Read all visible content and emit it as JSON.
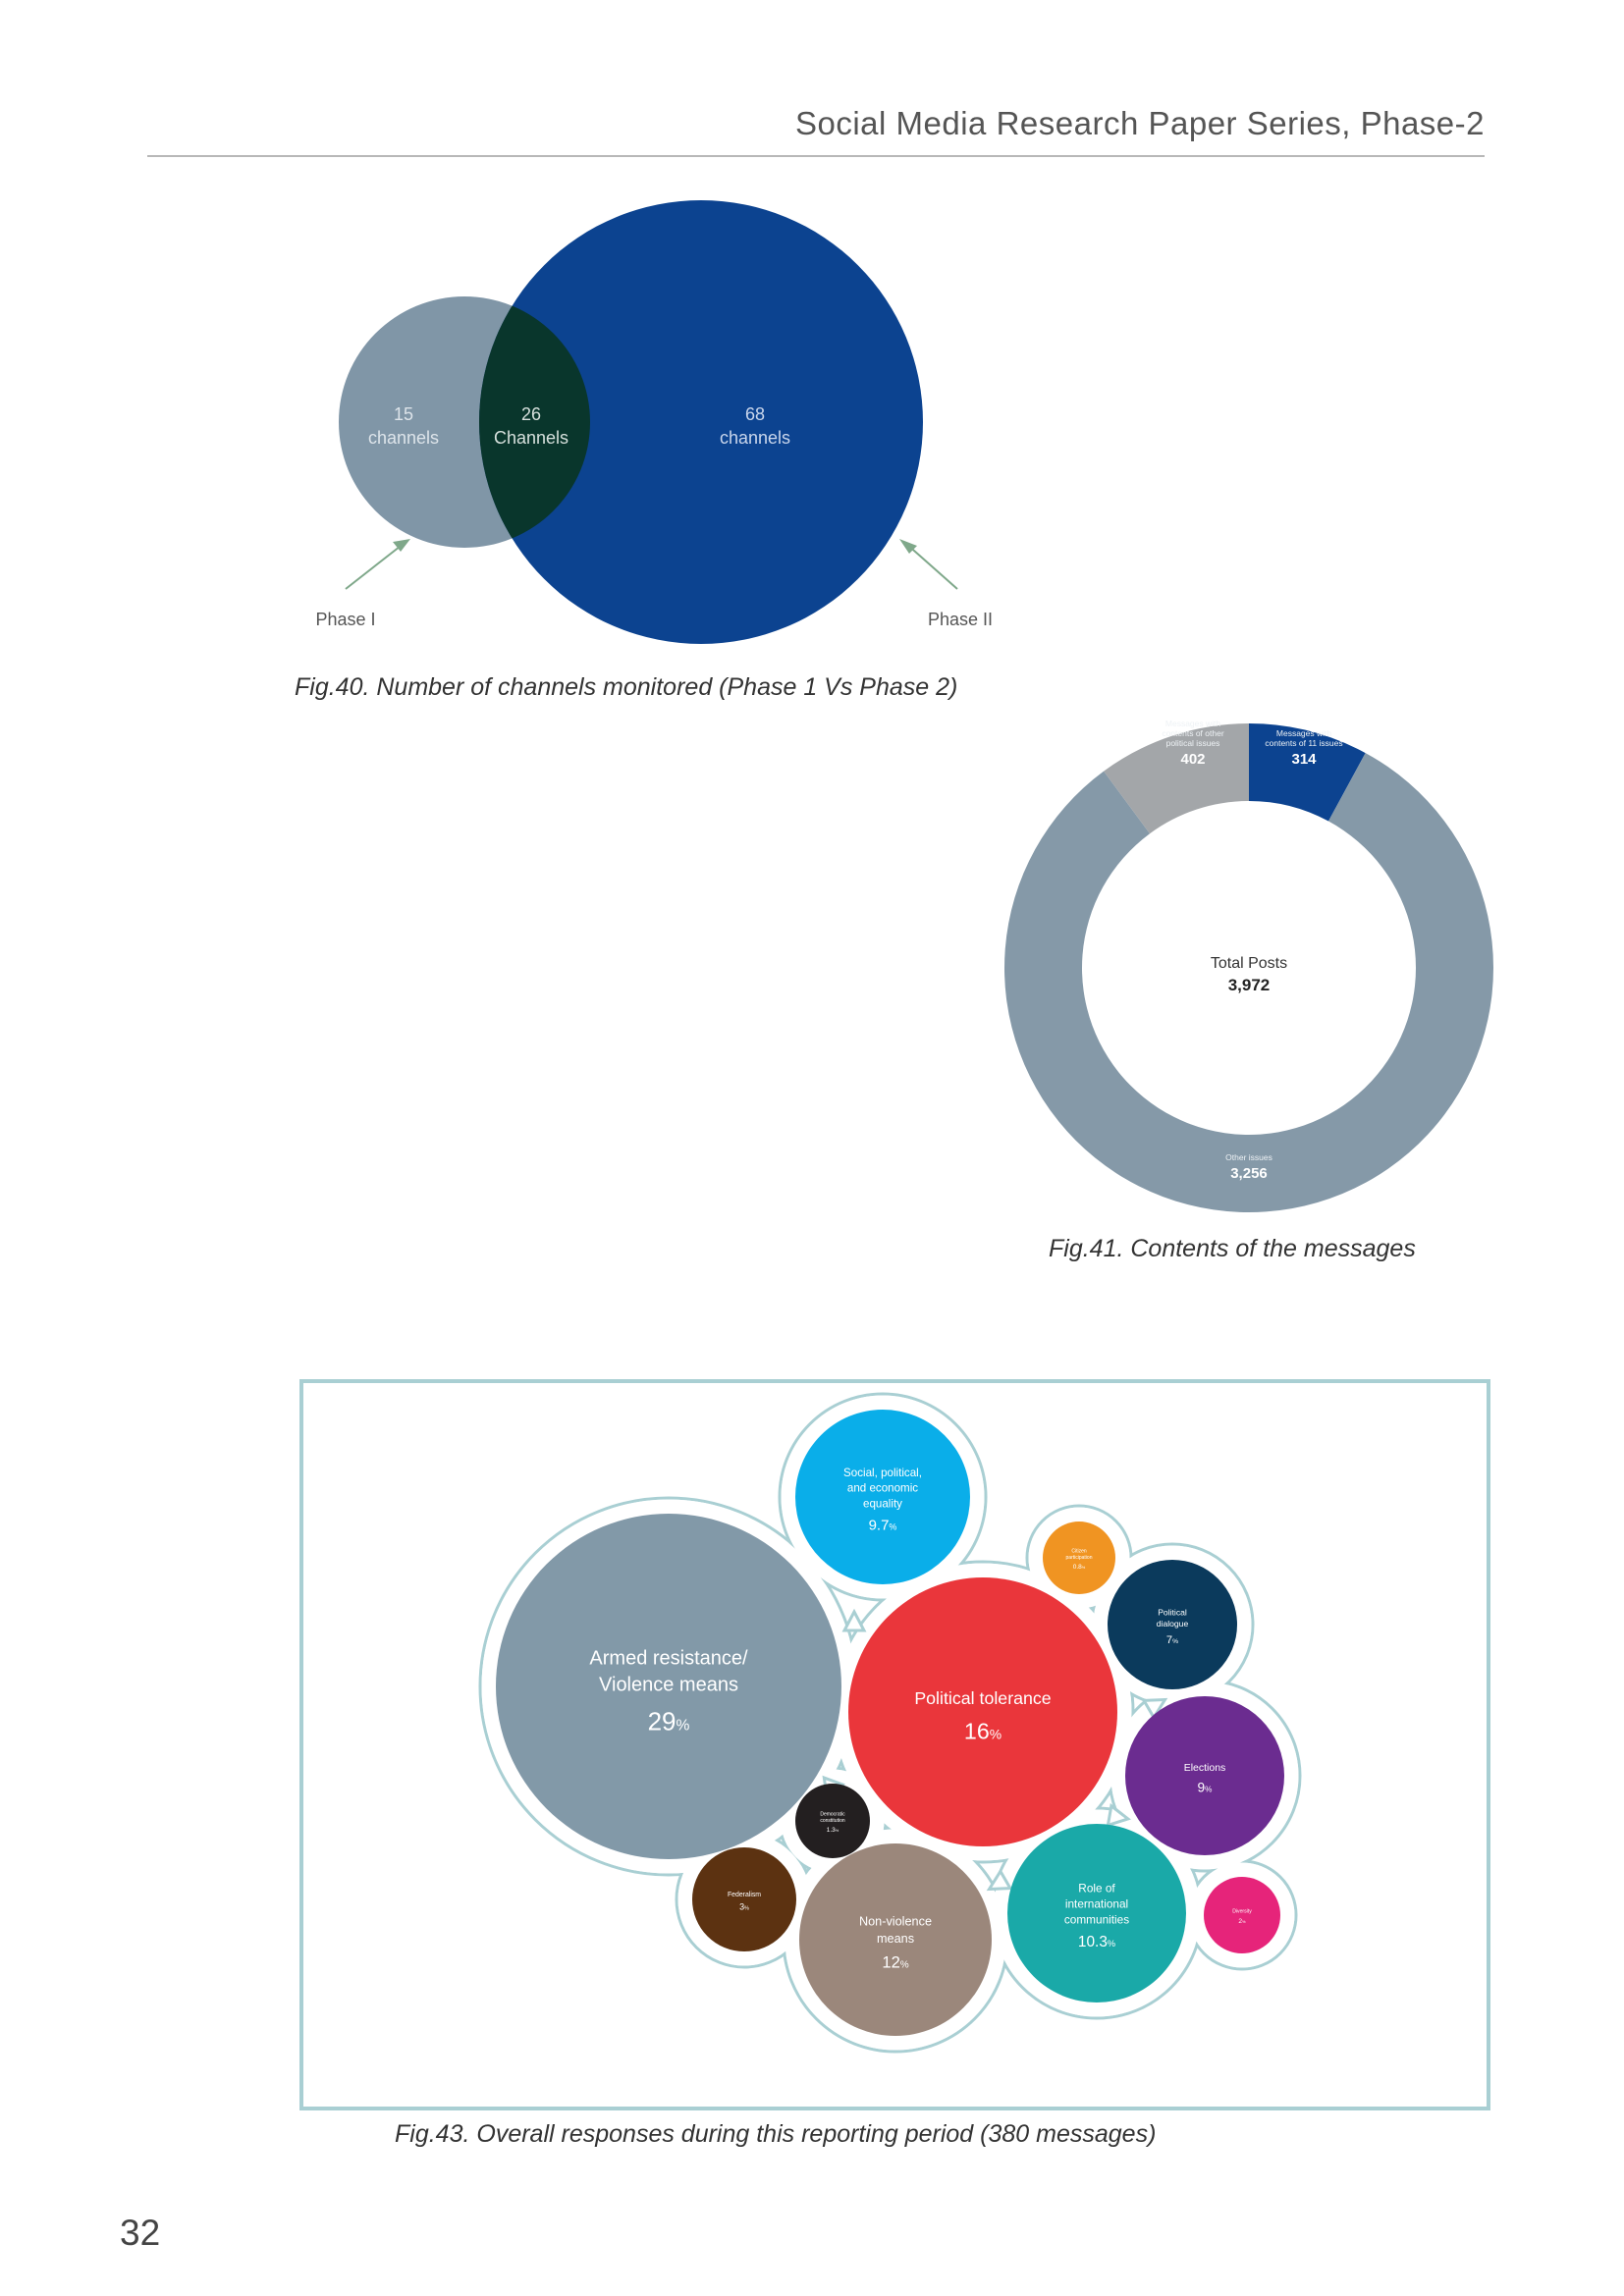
{
  "header": {
    "title": "Social Media Research Paper Series, Phase-2"
  },
  "page_number": "32",
  "fig40": {
    "caption": "Fig.40. Number of channels monitored (Phase 1 Vs Phase 2)",
    "phase1": {
      "label": "Phase I",
      "count": "15",
      "unit": "channels",
      "color": "#8096a7"
    },
    "overlap": {
      "count": "26",
      "unit": "Channels",
      "color": "#09362c"
    },
    "phase2": {
      "label": "Phase II",
      "count": "68",
      "unit": "channels",
      "color": "#0c4390"
    },
    "arrow_color": "#7fa88a"
  },
  "fig41": {
    "caption": "Fig.41. Contents of the messages",
    "center_label": "Total Posts",
    "center_value": "3,972",
    "chart_data": {
      "type": "pie",
      "total": 3972,
      "slices": [
        {
          "name_lines": [
            "Messages with",
            "contents of 11 issues"
          ],
          "value": 314,
          "display": "314",
          "color": "#0c4390"
        },
        {
          "name_lines": [
            "Other issues"
          ],
          "value": 3256,
          "display": "3,256",
          "color": "#8599a8"
        },
        {
          "name_lines": [
            "Messages with",
            "contents of other",
            "political issues"
          ],
          "value": 402,
          "display": "402",
          "color": "#a3a6a9"
        }
      ]
    }
  },
  "fig43": {
    "caption": "Fig.43. Overall responses during this reporting period (380 messages)",
    "frame_color": "#a9cfd3",
    "chart_data": {
      "type": "bubble",
      "bubbles": [
        {
          "name_lines": [
            "Armed resistance/",
            "Violence means"
          ],
          "value": 29,
          "pct": "29",
          "color": "#8299a8"
        },
        {
          "name_lines": [
            "Political tolerance"
          ],
          "value": 16,
          "pct": "16",
          "color": "#ea363b"
        },
        {
          "name_lines": [
            "Non-violence",
            "means"
          ],
          "value": 12,
          "pct": "12",
          "color": "#9b877b"
        },
        {
          "name_lines": [
            "Role of",
            "international",
            "communities"
          ],
          "value": 10.3,
          "pct": "10.3",
          "color": "#1aa9a8"
        },
        {
          "name_lines": [
            "Social, political,",
            "and economic",
            "equality"
          ],
          "value": 9.7,
          "pct": "9.7",
          "color": "#0aaee9"
        },
        {
          "name_lines": [
            "Elections"
          ],
          "value": 9,
          "pct": "9",
          "color": "#6b2c90"
        },
        {
          "name_lines": [
            "Political",
            "dialogue"
          ],
          "value": 7,
          "pct": "7",
          "color": "#0b3a5c"
        },
        {
          "name_lines": [
            "Federalism"
          ],
          "value": 3,
          "pct": "3",
          "color": "#5c3211"
        },
        {
          "name_lines": [
            "Diversity"
          ],
          "value": 2,
          "pct": "2",
          "color": "#e6247a"
        },
        {
          "name_lines": [
            "Democratic",
            "constitution"
          ],
          "value": 1.3,
          "pct": "1.3",
          "color": "#231f20"
        },
        {
          "name_lines": [
            "Citizen",
            "participation"
          ],
          "value": 0.8,
          "pct": "0.8",
          "color": "#f09422"
        }
      ]
    }
  }
}
